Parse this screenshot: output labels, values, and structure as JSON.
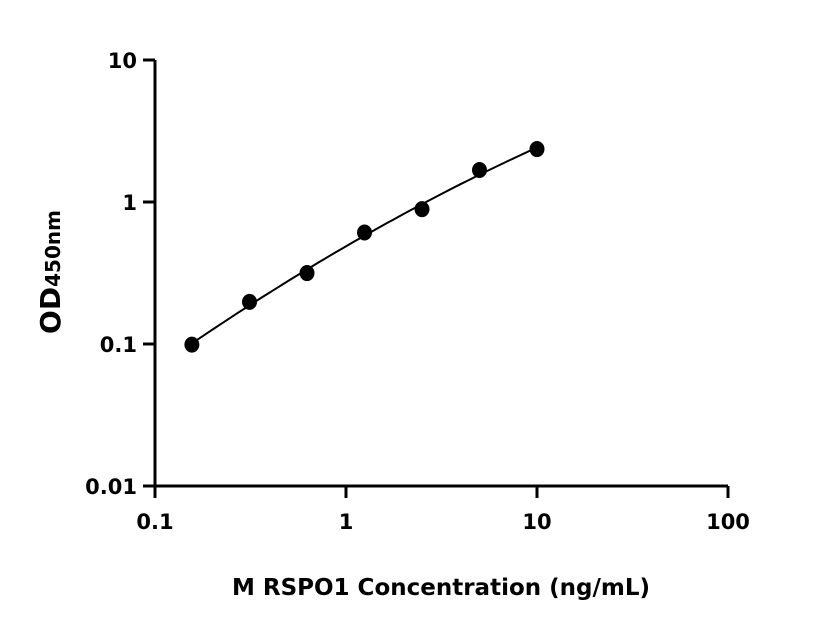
{
  "chart_data": {
    "type": "scatter",
    "xlabel": "M RSPO1 Concentration (ng/mL)",
    "ylabel_main": "OD",
    "ylabel_sub": "450nm",
    "x_scale": "log",
    "y_scale": "log",
    "xlim": [
      0.1,
      100
    ],
    "ylim": [
      0.01,
      10
    ],
    "x_ticks": [
      "0.1",
      "1",
      "10",
      "100"
    ],
    "y_ticks": [
      "0.01",
      "0.1",
      "1",
      "10"
    ],
    "grid": false,
    "fit_curve": true,
    "color": "#000000",
    "series": [
      {
        "x": [
          0.156,
          0.3125,
          0.625,
          1.25,
          2.5,
          5,
          10
        ],
        "y": [
          0.099,
          0.198,
          0.316,
          0.61,
          0.89,
          1.68,
          2.36
        ]
      }
    ]
  }
}
